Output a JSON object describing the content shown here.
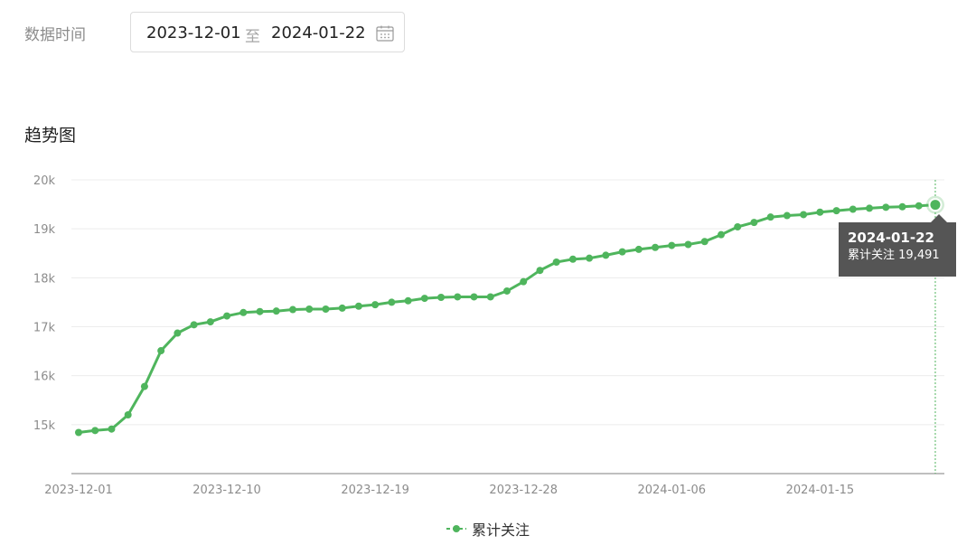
{
  "filter": {
    "label": "数据时间",
    "start_date": "2023-12-01",
    "separator": "至",
    "end_date": "2024-01-22",
    "calendar_icon": "calendar-icon"
  },
  "section_title": "趋势图",
  "tooltip": {
    "date": "2024-01-22",
    "series": "累计关注",
    "value": "19,491"
  },
  "legend": {
    "label": "累计关注"
  },
  "colors": {
    "series": "#4fb55d",
    "grid": "#ececec",
    "axis": "#bfbfbf",
    "tooltip_bg": "#555555"
  },
  "chart_data": {
    "type": "line",
    "title": "趋势图",
    "xlabel": "",
    "ylabel": "",
    "ylim": [
      14000,
      20000
    ],
    "yticks": [
      15000,
      16000,
      17000,
      18000,
      19000,
      20000
    ],
    "ytick_labels": [
      "15k",
      "16k",
      "17k",
      "18k",
      "19k",
      "20k"
    ],
    "xtick_labels": [
      "2023-12-01",
      "2023-12-10",
      "2023-12-19",
      "2023-12-28",
      "2024-01-06",
      "2024-01-15"
    ],
    "grid": true,
    "legend_position": "bottom-center",
    "series": [
      {
        "name": "累计关注",
        "x": [
          "2023-12-01",
          "2023-12-02",
          "2023-12-03",
          "2023-12-04",
          "2023-12-05",
          "2023-12-06",
          "2023-12-07",
          "2023-12-08",
          "2023-12-09",
          "2023-12-10",
          "2023-12-11",
          "2023-12-12",
          "2023-12-13",
          "2023-12-14",
          "2023-12-15",
          "2023-12-16",
          "2023-12-17",
          "2023-12-18",
          "2023-12-19",
          "2023-12-20",
          "2023-12-21",
          "2023-12-22",
          "2023-12-23",
          "2023-12-24",
          "2023-12-25",
          "2023-12-26",
          "2023-12-27",
          "2023-12-28",
          "2023-12-29",
          "2023-12-30",
          "2023-12-31",
          "2024-01-01",
          "2024-01-02",
          "2024-01-03",
          "2024-01-04",
          "2024-01-05",
          "2024-01-06",
          "2024-01-07",
          "2024-01-08",
          "2024-01-09",
          "2024-01-10",
          "2024-01-11",
          "2024-01-12",
          "2024-01-13",
          "2024-01-14",
          "2024-01-15",
          "2024-01-16",
          "2024-01-17",
          "2024-01-18",
          "2024-01-19",
          "2024-01-20",
          "2024-01-21",
          "2024-01-22"
        ],
        "values": [
          14840,
          14880,
          14910,
          15200,
          15780,
          16510,
          16870,
          17040,
          17100,
          17220,
          17290,
          17310,
          17320,
          17350,
          17360,
          17360,
          17380,
          17420,
          17450,
          17500,
          17530,
          17580,
          17600,
          17610,
          17610,
          17610,
          17730,
          17920,
          18150,
          18320,
          18380,
          18400,
          18460,
          18530,
          18580,
          18620,
          18660,
          18680,
          18740,
          18880,
          19040,
          19130,
          19240,
          19270,
          19290,
          19340,
          19370,
          19400,
          19420,
          19440,
          19450,
          19470,
          19491
        ]
      }
    ]
  }
}
